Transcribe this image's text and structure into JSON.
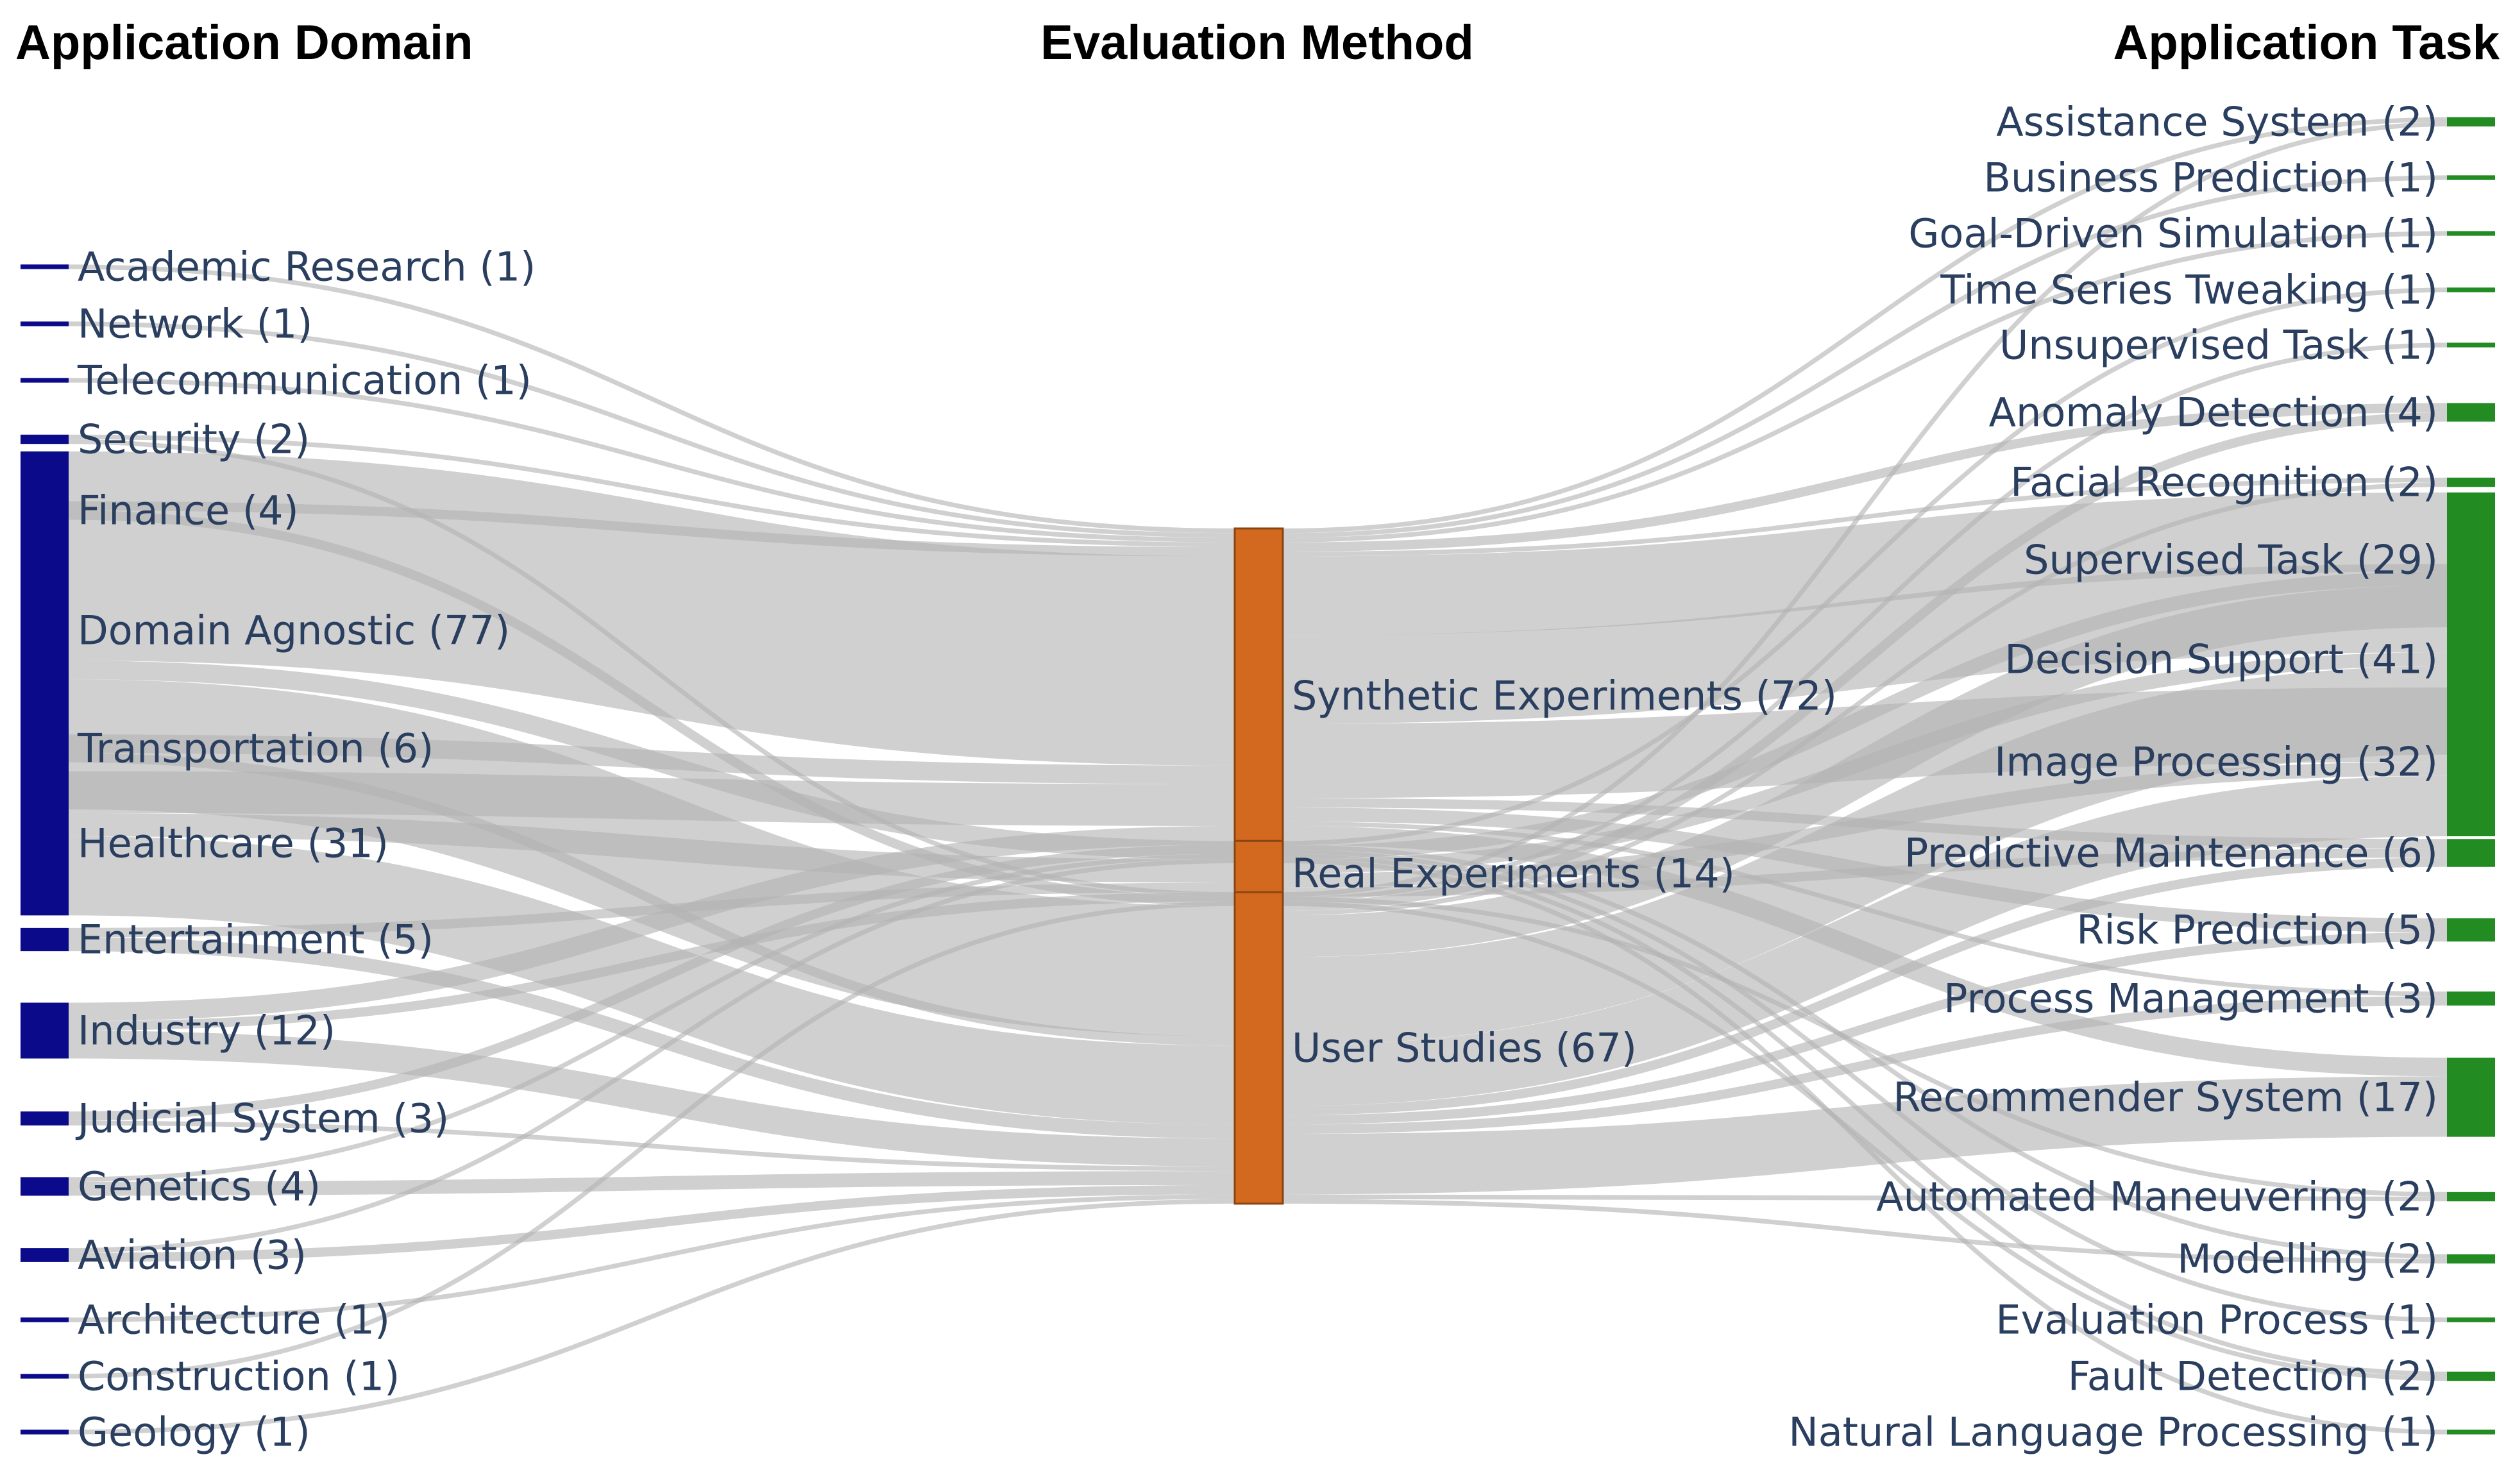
{
  "columns": {
    "left_title": "Application Domain",
    "middle_title": "Evaluation Method",
    "right_title": "Application Task"
  },
  "colors": {
    "domain": "#0a0a8a",
    "method": "#d2691e",
    "task": "#228b22",
    "link": "#b3b3b3",
    "label": "#2a3f5f"
  },
  "chart_data": {
    "type": "sankey",
    "domains": [
      {
        "name": "Academic Research",
        "count": 1,
        "label": "Academic Research (1)"
      },
      {
        "name": "Network",
        "count": 1,
        "label": "Network (1)"
      },
      {
        "name": "Telecommunication",
        "count": 1,
        "label": "Telecommunication (1)"
      },
      {
        "name": "Security",
        "count": 2,
        "label": "Security (2)"
      },
      {
        "name": "Finance",
        "count": 4,
        "label": "Finance (4)"
      },
      {
        "name": "Domain Agnostic",
        "count": 77,
        "label": "Domain Agnostic (77)"
      },
      {
        "name": "Transportation",
        "count": 6,
        "label": "Transportation (6)"
      },
      {
        "name": "Healthcare",
        "count": 31,
        "label": "Healthcare (31)"
      },
      {
        "name": "Entertainment",
        "count": 5,
        "label": "Entertainment (5)"
      },
      {
        "name": "Industry",
        "count": 12,
        "label": "Industry (12)"
      },
      {
        "name": "Judicial System",
        "count": 3,
        "label": "Judicial System (3)"
      },
      {
        "name": "Genetics",
        "count": 4,
        "label": "Genetics (4)"
      },
      {
        "name": "Aviation",
        "count": 3,
        "label": "Aviation (3)"
      },
      {
        "name": "Architecture",
        "count": 1,
        "label": "Architecture (1)"
      },
      {
        "name": "Construction",
        "count": 1,
        "label": "Construction (1)"
      },
      {
        "name": "Geology",
        "count": 1,
        "label": "Geology (1)"
      }
    ],
    "methods": [
      {
        "name": "Synthetic Experiments",
        "count": 72,
        "label": "Synthetic Experiments (72)"
      },
      {
        "name": "Real Experiments",
        "count": 14,
        "label": "Real Experiments (14)"
      },
      {
        "name": "User Studies",
        "count": 67,
        "label": "User Studies (67)"
      }
    ],
    "tasks": [
      {
        "name": "Assistance System",
        "count": 2,
        "label": "Assistance System (2)"
      },
      {
        "name": "Business Prediction",
        "count": 1,
        "label": "Business Prediction (1)"
      },
      {
        "name": "Goal-Driven Simulation",
        "count": 1,
        "label": "Goal-Driven Simulation (1)"
      },
      {
        "name": "Time Series Tweaking",
        "count": 1,
        "label": "Time Series Tweaking (1)"
      },
      {
        "name": "Unsupervised Task",
        "count": 1,
        "label": "Unsupervised Task (1)"
      },
      {
        "name": "Anomaly Detection",
        "count": 4,
        "label": "Anomaly Detection (4)"
      },
      {
        "name": "Facial Recognition",
        "count": 2,
        "label": "Facial Recognition (2)"
      },
      {
        "name": "Supervised Task",
        "count": 29,
        "label": "Supervised Task (29)"
      },
      {
        "name": "Decision Support",
        "count": 41,
        "label": "Decision Support (41)"
      },
      {
        "name": "Image Processing",
        "count": 32,
        "label": "Image Processing (32)"
      },
      {
        "name": "Predictive Maintenance",
        "count": 6,
        "label": "Predictive Maintenance (6)"
      },
      {
        "name": "Risk Prediction",
        "count": 5,
        "label": "Risk Prediction (5)"
      },
      {
        "name": "Process Management",
        "count": 3,
        "label": "Process Management (3)"
      },
      {
        "name": "Recommender System",
        "count": 17,
        "label": "Recommender System (17)"
      },
      {
        "name": "Automated Maneuvering",
        "count": 2,
        "label": "Automated Maneuvering (2)"
      },
      {
        "name": "Modelling",
        "count": 2,
        "label": "Modelling (2)"
      },
      {
        "name": "Evaluation Process",
        "count": 1,
        "label": "Evaluation Process (1)"
      },
      {
        "name": "Fault Detection",
        "count": 2,
        "label": "Fault Detection (2)"
      },
      {
        "name": "Natural Language Processing",
        "count": 1,
        "label": "Natural Language Processing (1)"
      }
    ],
    "domain_to_method": [
      {
        "source": "Academic Research",
        "target": "Synthetic Experiments",
        "value": 1
      },
      {
        "source": "Network",
        "target": "Synthetic Experiments",
        "value": 1
      },
      {
        "source": "Telecommunication",
        "target": "Synthetic Experiments",
        "value": 1
      },
      {
        "source": "Security",
        "target": "Synthetic Experiments",
        "value": 1
      },
      {
        "source": "Security",
        "target": "User Studies",
        "value": 1
      },
      {
        "source": "Finance",
        "target": "Synthetic Experiments",
        "value": 2
      },
      {
        "source": "Finance",
        "target": "User Studies",
        "value": 2
      },
      {
        "source": "Domain Agnostic",
        "target": "Synthetic Experiments",
        "value": 45
      },
      {
        "source": "Domain Agnostic",
        "target": "Real Experiments",
        "value": 4
      },
      {
        "source": "Domain Agnostic",
        "target": "User Studies",
        "value": 28
      },
      {
        "source": "Transportation",
        "target": "Synthetic Experiments",
        "value": 4
      },
      {
        "source": "Transportation",
        "target": "User Studies",
        "value": 2
      },
      {
        "source": "Healthcare",
        "target": "Synthetic Experiments",
        "value": 9
      },
      {
        "source": "Healthcare",
        "target": "Real Experiments",
        "value": 5
      },
      {
        "source": "Healthcare",
        "target": "User Studies",
        "value": 17
      },
      {
        "source": "Entertainment",
        "target": "Real Experiments",
        "value": 2
      },
      {
        "source": "Entertainment",
        "target": "User Studies",
        "value": 3
      },
      {
        "source": "Industry",
        "target": "Synthetic Experiments",
        "value": 4
      },
      {
        "source": "Industry",
        "target": "Real Experiments",
        "value": 2
      },
      {
        "source": "Industry",
        "target": "User Studies",
        "value": 6
      },
      {
        "source": "Judicial System",
        "target": "Synthetic Experiments",
        "value": 2
      },
      {
        "source": "Judicial System",
        "target": "User Studies",
        "value": 1
      },
      {
        "source": "Genetics",
        "target": "Synthetic Experiments",
        "value": 1
      },
      {
        "source": "Genetics",
        "target": "User Studies",
        "value": 3
      },
      {
        "source": "Aviation",
        "target": "Synthetic Experiments",
        "value": 1
      },
      {
        "source": "Aviation",
        "target": "User Studies",
        "value": 2
      },
      {
        "source": "Architecture",
        "target": "User Studies",
        "value": 1
      },
      {
        "source": "Construction",
        "target": "Real Experiments",
        "value": 1
      },
      {
        "source": "Geology",
        "target": "User Studies",
        "value": 1
      }
    ],
    "method_to_task": [
      {
        "source": "Synthetic Experiments",
        "target": "Assistance System",
        "value": 1
      },
      {
        "source": "Synthetic Experiments",
        "target": "Business Prediction",
        "value": 1
      },
      {
        "source": "Synthetic Experiments",
        "target": "Goal-Driven Simulation",
        "value": 1
      },
      {
        "source": "Synthetic Experiments",
        "target": "Anomaly Detection",
        "value": 2
      },
      {
        "source": "Synthetic Experiments",
        "target": "Facial Recognition",
        "value": 1
      },
      {
        "source": "Synthetic Experiments",
        "target": "Supervised Task",
        "value": 17
      },
      {
        "source": "Synthetic Experiments",
        "target": "Decision Support",
        "value": 19
      },
      {
        "source": "Synthetic Experiments",
        "target": "Image Processing",
        "value": 16
      },
      {
        "source": "Synthetic Experiments",
        "target": "Predictive Maintenance",
        "value": 2
      },
      {
        "source": "Synthetic Experiments",
        "target": "Risk Prediction",
        "value": 3
      },
      {
        "source": "Synthetic Experiments",
        "target": "Process Management",
        "value": 1
      },
      {
        "source": "Synthetic Experiments",
        "target": "Recommender System",
        "value": 4
      },
      {
        "source": "Synthetic Experiments",
        "target": "Modelling",
        "value": 1
      },
      {
        "source": "Synthetic Experiments",
        "target": "Evaluation Process",
        "value": 1
      },
      {
        "source": "Synthetic Experiments",
        "target": "Fault Detection",
        "value": 1
      },
      {
        "source": "Synthetic Experiments",
        "target": "Natural Language Processing",
        "value": 1
      },
      {
        "source": "Real Experiments",
        "target": "Time Series Tweaking",
        "value": 1
      },
      {
        "source": "Real Experiments",
        "target": "Supervised Task",
        "value": 3
      },
      {
        "source": "Real Experiments",
        "target": "Decision Support",
        "value": 3
      },
      {
        "source": "Real Experiments",
        "target": "Image Processing",
        "value": 3
      },
      {
        "source": "Real Experiments",
        "target": "Predictive Maintenance",
        "value": 2
      },
      {
        "source": "Real Experiments",
        "target": "Automated Maneuvering",
        "value": 1
      },
      {
        "source": "Real Experiments",
        "target": "Fault Detection",
        "value": 1
      },
      {
        "source": "User Studies",
        "target": "Assistance System",
        "value": 1
      },
      {
        "source": "User Studies",
        "target": "Unsupervised Task",
        "value": 1
      },
      {
        "source": "User Studies",
        "target": "Anomaly Detection",
        "value": 2
      },
      {
        "source": "User Studies",
        "target": "Facial Recognition",
        "value": 1
      },
      {
        "source": "User Studies",
        "target": "Supervised Task",
        "value": 9
      },
      {
        "source": "User Studies",
        "target": "Decision Support",
        "value": 19
      },
      {
        "source": "User Studies",
        "target": "Image Processing",
        "value": 13
      },
      {
        "source": "User Studies",
        "target": "Predictive Maintenance",
        "value": 2
      },
      {
        "source": "User Studies",
        "target": "Risk Prediction",
        "value": 2
      },
      {
        "source": "User Studies",
        "target": "Process Management",
        "value": 2
      },
      {
        "source": "User Studies",
        "target": "Recommender System",
        "value": 13
      },
      {
        "source": "User Studies",
        "target": "Automated Maneuvering",
        "value": 1
      },
      {
        "source": "User Studies",
        "target": "Modelling",
        "value": 1
      }
    ]
  }
}
